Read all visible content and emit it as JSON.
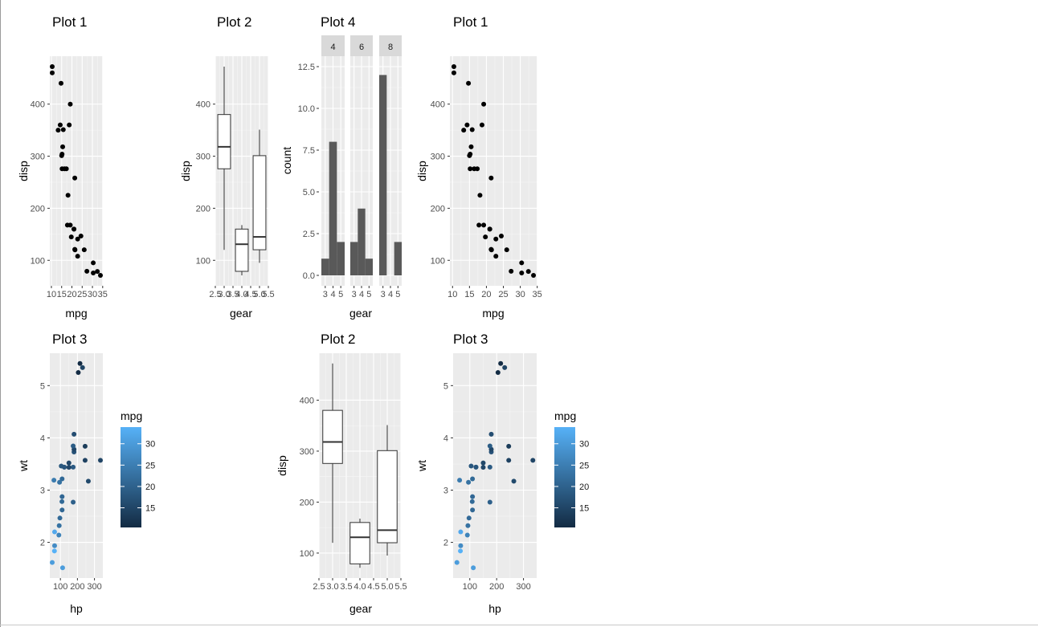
{
  "colors": {
    "panel_bg": "#ebebeb",
    "grid_major": "#ffffff",
    "grid_minor": "#f5f5f5",
    "point": "#000000",
    "bar": "#595959",
    "strip_bg": "#d9d9d9",
    "axis_text": "#4d4d4d",
    "gradient_low": "#132b43",
    "gradient_high": "#56b1f7"
  },
  "chart_data": [
    {
      "id": "p1a",
      "type": "scatter",
      "title": "Plot 1",
      "xlabel": "mpg",
      "ylabel": "disp",
      "xlim": [
        10.4,
        33.9
      ],
      "ylim": [
        71.1,
        472
      ],
      "xticks": [
        "10",
        "15",
        "20",
        "25",
        "30",
        "35"
      ],
      "yticks": [
        "100",
        "200",
        "300",
        "400"
      ],
      "points": [
        [
          21,
          160
        ],
        [
          21,
          160
        ],
        [
          22.8,
          108
        ],
        [
          21.4,
          258
        ],
        [
          18.7,
          360
        ],
        [
          18.1,
          225
        ],
        [
          14.3,
          360
        ],
        [
          24.4,
          146.7
        ],
        [
          22.8,
          140.8
        ],
        [
          19.2,
          167.6
        ],
        [
          17.8,
          167.6
        ],
        [
          16.4,
          275.8
        ],
        [
          17.3,
          275.8
        ],
        [
          15.2,
          275.8
        ],
        [
          10.4,
          472
        ],
        [
          10.4,
          460
        ],
        [
          14.7,
          440
        ],
        [
          32.4,
          78.7
        ],
        [
          30.4,
          75.7
        ],
        [
          33.9,
          71.1
        ],
        [
          21.5,
          120.1
        ],
        [
          15.5,
          318
        ],
        [
          15.2,
          304
        ],
        [
          13.3,
          350
        ],
        [
          19.2,
          400
        ],
        [
          27.3,
          79
        ],
        [
          26,
          120.3
        ],
        [
          30.4,
          95.1
        ],
        [
          15.8,
          351
        ],
        [
          19.7,
          145
        ],
        [
          15,
          301
        ],
        [
          21.4,
          121
        ]
      ]
    },
    {
      "id": "p2a",
      "type": "boxplot",
      "title": "Plot 2",
      "xlabel": "gear",
      "ylabel": "disp",
      "xlim": [
        2.5,
        5.5
      ],
      "ylim": [
        71.1,
        472
      ],
      "xticks": [
        "2.5",
        "3.0",
        "3.5",
        "4.0",
        "4.5",
        "5.0",
        "5.5"
      ],
      "yticks": [
        "100",
        "200",
        "300",
        "400"
      ],
      "boxes": [
        {
          "x": 3,
          "min": 120.1,
          "q1": 275.8,
          "median": 318,
          "q3": 380,
          "max": 472
        },
        {
          "x": 4,
          "min": 71.1,
          "q1": 78.85,
          "median": 130.9,
          "q3": 160,
          "max": 167.6
        },
        {
          "x": 5,
          "min": 95.1,
          "q1": 120.3,
          "median": 145,
          "q3": 301,
          "max": 351
        }
      ]
    },
    {
      "id": "p4",
      "type": "bar",
      "title": "Plot 4",
      "xlabel": "gear",
      "ylabel": "count",
      "ylim": [
        0,
        12.5
      ],
      "yticks": [
        "0.0",
        "2.5",
        "5.0",
        "7.5",
        "10.0",
        "12.5"
      ],
      "xticks": [
        "3",
        "4",
        "5"
      ],
      "facets": [
        {
          "label": "4",
          "values": [
            1,
            8,
            2
          ]
        },
        {
          "label": "6",
          "values": [
            2,
            4,
            1
          ]
        },
        {
          "label": "8",
          "values": [
            12,
            0,
            2
          ]
        }
      ]
    },
    {
      "id": "p1b",
      "type": "scatter",
      "title": "Plot 1",
      "xlabel": "mpg",
      "ylabel": "disp",
      "xlim": [
        10.4,
        33.9
      ],
      "ylim": [
        71.1,
        472
      ],
      "xticks": [
        "10",
        "15",
        "20",
        "25",
        "30",
        "35"
      ],
      "yticks": [
        "100",
        "200",
        "300",
        "400"
      ],
      "points_ref": "p1a"
    },
    {
      "id": "p3a",
      "type": "scatter",
      "title": "Plot 3",
      "xlabel": "hp",
      "ylabel": "wt",
      "xlim": [
        52,
        335
      ],
      "ylim": [
        1.513,
        5.424
      ],
      "xticks": [
        "100",
        "200",
        "300"
      ],
      "yticks": [
        "2",
        "3",
        "4",
        "5"
      ],
      "color_var": "mpg",
      "color_range": [
        10.4,
        33.9
      ],
      "legend_title": "mpg",
      "legend_ticks": [
        "15",
        "20",
        "25",
        "30"
      ],
      "points": [
        [
          110,
          2.62,
          21
        ],
        [
          110,
          2.875,
          21
        ],
        [
          93,
          2.32,
          22.8
        ],
        [
          110,
          3.215,
          21.4
        ],
        [
          175,
          3.44,
          18.7
        ],
        [
          105,
          3.46,
          18.1
        ],
        [
          245,
          3.57,
          14.3
        ],
        [
          62,
          3.19,
          24.4
        ],
        [
          95,
          3.15,
          22.8
        ],
        [
          123,
          3.44,
          19.2
        ],
        [
          123,
          3.44,
          17.8
        ],
        [
          180,
          4.07,
          16.4
        ],
        [
          180,
          3.73,
          17.3
        ],
        [
          180,
          3.78,
          15.2
        ],
        [
          205,
          5.25,
          10.4
        ],
        [
          215,
          5.424,
          10.4
        ],
        [
          230,
          5.345,
          14.7
        ],
        [
          66,
          2.2,
          32.4
        ],
        [
          52,
          1.615,
          30.4
        ],
        [
          65,
          1.835,
          33.9
        ],
        [
          97,
          2.465,
          21.5
        ],
        [
          150,
          3.52,
          15.5
        ],
        [
          150,
          3.435,
          15.2
        ],
        [
          245,
          3.84,
          13.3
        ],
        [
          175,
          3.845,
          19.2
        ],
        [
          66,
          1.935,
          27.3
        ],
        [
          91,
          2.14,
          26
        ],
        [
          113,
          1.513,
          30.4
        ],
        [
          264,
          3.17,
          15.8
        ],
        [
          175,
          2.77,
          19.7
        ],
        [
          335,
          3.57,
          15
        ],
        [
          109,
          2.78,
          21.4
        ]
      ]
    },
    {
      "id": "p2b",
      "type": "boxplot",
      "title": "Plot 2",
      "xlabel": "gear",
      "ylabel": "disp",
      "xlim": [
        2.5,
        5.5
      ],
      "ylim": [
        71.1,
        472
      ],
      "xticks": [
        "2.5",
        "3.0",
        "3.5",
        "4.0",
        "4.5",
        "5.0",
        "5.5"
      ],
      "yticks": [
        "100",
        "200",
        "300",
        "400"
      ],
      "boxes_ref": "p2a"
    },
    {
      "id": "p3b",
      "type": "scatter",
      "title": "Plot 3",
      "xlabel": "hp",
      "ylabel": "wt",
      "xlim": [
        52,
        335
      ],
      "ylim": [
        1.513,
        5.424
      ],
      "xticks": [
        "100",
        "200",
        "300"
      ],
      "yticks": [
        "2",
        "3",
        "4",
        "5"
      ],
      "color_var": "mpg",
      "color_range": [
        10.4,
        33.9
      ],
      "legend_title": "mpg",
      "legend_ticks": [
        "15",
        "20",
        "25",
        "30"
      ],
      "points_ref": "p3a"
    }
  ]
}
